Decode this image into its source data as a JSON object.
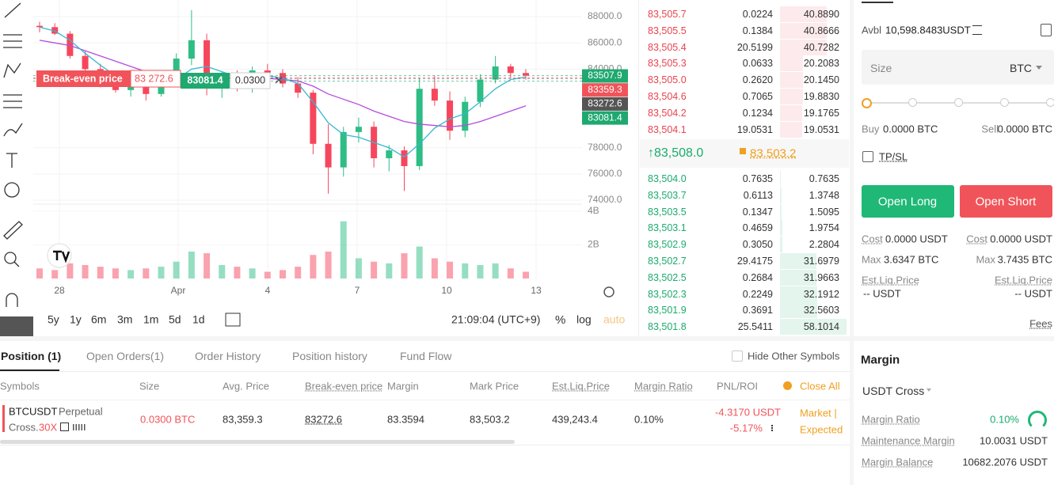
{
  "chart_data": {
    "type": "candlestick",
    "xtick_labels": [
      "28",
      "Apr",
      "4",
      "7",
      "10",
      "13"
    ],
    "ylim": [
      73700,
      89270
    ],
    "yticks": [
      {
        "value": 88000,
        "label": "88000.0"
      },
      {
        "value": 86000,
        "label": "86000.0"
      },
      {
        "value": 84000,
        "label": "84000.0"
      },
      {
        "value": 78000,
        "label": "78000.0"
      },
      {
        "value": 76000,
        "label": "76000.0"
      },
      {
        "value": 74000,
        "label": "74000.0"
      }
    ],
    "open": [
      87300,
      87200,
      86700,
      85000,
      84000,
      83000,
      82400,
      82800,
      82100,
      83600,
      84800,
      86200,
      82600,
      83300,
      82500,
      83900,
      83700,
      82900,
      82200,
      78300,
      76500,
      79200,
      79600,
      77200,
      77800,
      76600,
      82500,
      81600,
      79300,
      81500,
      83200,
      84200,
      83700
    ],
    "high": [
      87600,
      87500,
      86900,
      85400,
      84400,
      83600,
      83300,
      83200,
      83800,
      85200,
      88500,
      86700,
      83800,
      83900,
      84200,
      84400,
      84000,
      83400,
      82400,
      79800,
      79600,
      80300,
      80000,
      78200,
      78100,
      83300,
      83500,
      82300,
      81900,
      83600,
      85000,
      84400,
      84000
    ],
    "low": [
      86800,
      86600,
      84800,
      83600,
      82600,
      82200,
      81900,
      81600,
      81900,
      83200,
      84300,
      82000,
      81800,
      82300,
      82200,
      83300,
      82600,
      81800,
      77500,
      74500,
      75800,
      78400,
      76500,
      76200,
      74700,
      76300,
      81200,
      78600,
      78800,
      81100,
      82900,
      83300,
      83200
    ],
    "close": [
      87200,
      86700,
      85000,
      84000,
      83000,
      82400,
      82800,
      82100,
      83600,
      84800,
      86200,
      82600,
      83300,
      82500,
      83900,
      83700,
      82900,
      82200,
      78300,
      76500,
      79200,
      79600,
      77200,
      77800,
      76600,
      82500,
      81600,
      79300,
      81500,
      83200,
      84200,
      83700,
      83500
    ],
    "up_color": "#2ebd85",
    "down_color": "#f6465d",
    "volume": [
      0.6,
      0.5,
      0.9,
      0.8,
      0.7,
      0.6,
      0.5,
      0.6,
      0.7,
      1.0,
      1.6,
      1.5,
      0.8,
      0.7,
      0.6,
      0.4,
      0.5,
      0.7,
      1.4,
      1.6,
      3.4,
      1.2,
      1.0,
      0.9,
      1.5,
      1.9,
      1.2,
      1.0,
      0.9,
      0.8,
      0.9,
      0.6,
      0.4
    ],
    "volume_ylim": [
      0,
      4.23
    ],
    "volume_yticks": [
      {
        "value": 4,
        "label": "4B"
      },
      {
        "value": 2,
        "label": "2B"
      }
    ],
    "moving_averages": [
      {
        "color": "#b44be0",
        "values": [
          86200,
          86000,
          85800,
          85400,
          85000,
          84600,
          84200,
          83800,
          83600,
          83500,
          83500,
          83500,
          83400,
          83300,
          83300,
          83300,
          83200,
          83100,
          82700,
          82100,
          81700,
          81300,
          80800,
          80400,
          80000,
          79800,
          79700,
          79600,
          79700,
          80000,
          80400,
          80800,
          81200
        ]
      },
      {
        "color": "#35b8d0",
        "values": [
          87200,
          86900,
          86200,
          85200,
          84300,
          83500,
          83000,
          82700,
          82700,
          83200,
          84000,
          84200,
          83800,
          83400,
          83300,
          83500,
          83300,
          82900,
          81500,
          79900,
          79000,
          78800,
          78400,
          78000,
          77300,
          78300,
          79500,
          80200,
          80600,
          81500,
          82500,
          83200,
          83400
        ]
      }
    ],
    "price_tags": [
      {
        "value": 83507.9,
        "color": "#1fa870"
      },
      {
        "value": 83359.3,
        "color": "#f0545a"
      },
      {
        "value": 83272.6,
        "color": "#555555"
      },
      {
        "value": 83081.4,
        "color": "#1fa870"
      }
    ],
    "breakeven": {
      "label": "Break-even price",
      "price": "83 272.6",
      "position": "83081.4",
      "qty": "0.0300"
    },
    "ranges": [
      "5y",
      "1y",
      "6m",
      "3m",
      "1m",
      "5d",
      "1d"
    ],
    "time": "21:09:04 (UTC+9)",
    "percent": "%",
    "log": "log",
    "auto": "auto"
  },
  "order_book": {
    "asks": [
      [
        "83,505.7",
        "0.0224",
        "40.8890"
      ],
      [
        "83,505.5",
        "0.1384",
        "40.8666"
      ],
      [
        "83,505.4",
        "20.5199",
        "40.7282"
      ],
      [
        "83,505.3",
        "0.0633",
        "20.2083"
      ],
      [
        "83,505.0",
        "0.2620",
        "20.1450"
      ],
      [
        "83,504.6",
        "0.7065",
        "19.8830"
      ],
      [
        "83,504.2",
        "0.1234",
        "19.1765"
      ],
      [
        "83,504.1",
        "19.0531",
        "19.0531"
      ]
    ],
    "last": "↑83,508.0",
    "mark": "83,503.2",
    "bids": [
      [
        "83,504.0",
        "0.7635",
        "0.7635"
      ],
      [
        "83,503.7",
        "0.6113",
        "1.3748"
      ],
      [
        "83,503.5",
        "0.1347",
        "1.5095"
      ],
      [
        "83,503.1",
        "0.4659",
        "1.9754"
      ],
      [
        "83,502.9",
        "0.3050",
        "2.2804"
      ],
      [
        "83,502.7",
        "29.4175",
        "31.6979"
      ],
      [
        "83,502.5",
        "0.2684",
        "31.9663"
      ],
      [
        "83,502.3",
        "0.2249",
        "32.1912"
      ],
      [
        "83,501.9",
        "0.3691",
        "32.5603"
      ],
      [
        "83,501.8",
        "25.5411",
        "58.1014"
      ]
    ]
  },
  "trade": {
    "avbl_label": "Avbl",
    "avbl": "10,598.8483USDT",
    "size": "Size",
    "unit": "BTC",
    "buy": "Buy",
    "buy_val": "0.0000 BTC",
    "sell": "Sell",
    "sell_val": "0.0000 BTC",
    "tpsl": "TP/SL",
    "long": "Open Long",
    "short": "Open Short",
    "cost": "Cost",
    "cost_long": "0.0000 USDT",
    "cost_short": "0.0000 USDT",
    "max": "Max",
    "max_long": "3.6347 BTC",
    "max_short": "3.7435 BTC",
    "liq": "Est.Liq.Price",
    "liq_long": "-- USDT",
    "liq_short": "-- USDT",
    "fees": "Fees"
  },
  "margin": {
    "title": "Margin",
    "mode": "USDT Cross",
    "ratio_label": "Margin Ratio",
    "ratio": "0.10%",
    "maint_label": "Maintenance Margin",
    "maint": "10.0031 USDT",
    "balance_label": "Margin Balance",
    "balance": "10682.2076 USDT"
  },
  "positions": {
    "tabs": [
      "Position (1)",
      "Open Orders(1)",
      "Order History",
      "Position history",
      "Fund Flow"
    ],
    "hide": "Hide Other Symbols",
    "headers": [
      "Symbols",
      "Size",
      "Avg. Price",
      "Break-even price",
      "Margin",
      "Mark Price",
      "Est.Liq.Price",
      "Margin Ratio",
      "PNL/ROI",
      "Close All"
    ],
    "row": {
      "symbol": "BTCUSDT",
      "contract": "Perpetual",
      "mode": "Cross.",
      "leverage": "30X",
      "size": "0.0300 BTC",
      "avg": "83,359.3",
      "breakeven": "83272.6",
      "margin": "83.3594",
      "mark": "83,503.2",
      "liq": "439,243.4",
      "ratio": "0.10%",
      "pnl": "-4.3170 USDT",
      "roi": "-5.17%",
      "close1": "Market |",
      "close2": "Expected"
    }
  }
}
